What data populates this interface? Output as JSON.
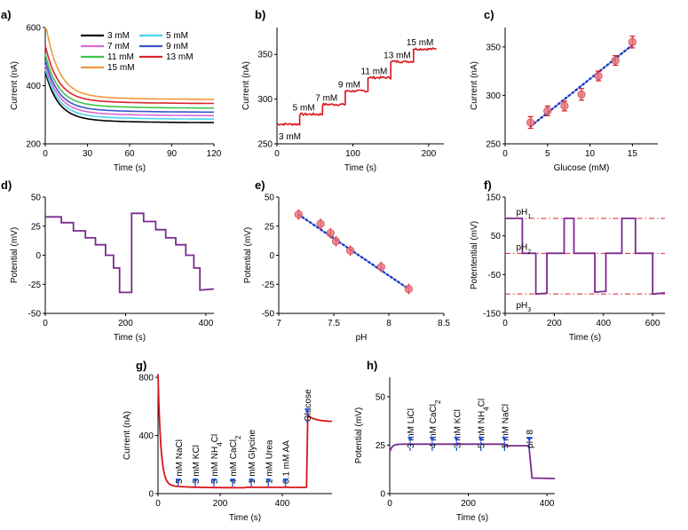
{
  "colors": {
    "purple": "#7b2a8f",
    "red": "#d9141b",
    "blue_dot": "#1f3fc6",
    "arrow_blue": "#2256d9",
    "ref_line": "#d9262e",
    "marker": "#e8707a"
  },
  "chart_data": [
    {
      "id": "a",
      "panel_label": "a)",
      "type": "line",
      "xlabel": "Time (s)",
      "ylabel": "Current (nA)",
      "xlim": [
        0,
        120
      ],
      "ylim": [
        200,
        600
      ],
      "xticks": [
        0,
        30,
        60,
        90,
        120
      ],
      "yticks": [
        200,
        400,
        600
      ],
      "legend": [
        {
          "name": "3 mM",
          "color": "#000000"
        },
        {
          "name": "5 mM",
          "color": "#49d4e6"
        },
        {
          "name": "7 mM",
          "color": "#d86ad8"
        },
        {
          "name": "9 mM",
          "color": "#3a55c8"
        },
        {
          "name": "11 mM",
          "color": "#3ec44a"
        },
        {
          "name": "13 mM",
          "color": "#d9242b"
        },
        {
          "name": "15 mM",
          "color": "#f0993a"
        }
      ],
      "series": [
        {
          "name": "3 mM",
          "plateau": 272,
          "start": 430
        },
        {
          "name": "5 mM",
          "plateau": 284,
          "start": 440
        },
        {
          "name": "7 mM",
          "plateau": 296,
          "start": 455
        },
        {
          "name": "9 mM",
          "plateau": 308,
          "start": 470
        },
        {
          "name": "11 mM",
          "plateau": 322,
          "start": 490
        },
        {
          "name": "13 mM",
          "plateau": 338,
          "start": 520
        },
        {
          "name": "15 mM",
          "plateau": 352,
          "start": 600
        }
      ]
    },
    {
      "id": "b",
      "panel_label": "b)",
      "type": "line",
      "xlabel": "Time (s)",
      "ylabel": "Current (nA)",
      "xlim": [
        0,
        220
      ],
      "ylim": [
        250,
        380
      ],
      "xticks": [
        0,
        100,
        200
      ],
      "yticks": [
        250,
        300,
        350
      ],
      "steps": [
        {
          "x0": 0,
          "x1": 30,
          "y": 272,
          "label": "3 mM"
        },
        {
          "x0": 30,
          "x1": 60,
          "y": 283,
          "label": "5 mM"
        },
        {
          "x0": 60,
          "x1": 90,
          "y": 294,
          "label": "7 mM"
        },
        {
          "x0": 90,
          "x1": 120,
          "y": 309,
          "label": "9 mM"
        },
        {
          "x0": 120,
          "x1": 150,
          "y": 324,
          "label": "11 mM"
        },
        {
          "x0": 150,
          "x1": 180,
          "y": 342,
          "label": "13 mM"
        },
        {
          "x0": 180,
          "x1": 210,
          "y": 356,
          "label": "15 mM"
        }
      ]
    },
    {
      "id": "c",
      "panel_label": "c)",
      "type": "scatter",
      "xlabel": "Glucose (mM)",
      "ylabel": "Current (nA)",
      "xlim": [
        0,
        18
      ],
      "ylim": [
        250,
        370
      ],
      "xticks": [
        0,
        5,
        10,
        15
      ],
      "yticks": [
        250,
        300,
        350
      ],
      "x": [
        3,
        5,
        7,
        9,
        11,
        13,
        15
      ],
      "y": [
        272,
        284,
        289,
        301,
        320,
        336,
        355
      ],
      "yerr": [
        6,
        5,
        5,
        6,
        5,
        5,
        6
      ],
      "fit": {
        "x": [
          3,
          15
        ],
        "y": [
          268,
          352
        ]
      }
    },
    {
      "id": "d",
      "panel_label": "d)",
      "type": "line",
      "xlabel": "Time (s)",
      "ylabel": "Potential (mV)",
      "xlim": [
        0,
        420
      ],
      "ylim": [
        -50,
        50
      ],
      "xticks": [
        0,
        200,
        400
      ],
      "yticks": [
        -50,
        -25,
        0,
        25,
        50
      ],
      "path": [
        [
          0,
          33
        ],
        [
          40,
          33
        ],
        [
          40,
          28
        ],
        [
          70,
          28
        ],
        [
          70,
          21
        ],
        [
          100,
          21
        ],
        [
          100,
          15
        ],
        [
          125,
          15
        ],
        [
          125,
          9
        ],
        [
          150,
          9
        ],
        [
          150,
          0
        ],
        [
          170,
          0
        ],
        [
          170,
          -11
        ],
        [
          185,
          -11
        ],
        [
          185,
          -32
        ],
        [
          215,
          -32
        ],
        [
          215,
          36
        ],
        [
          245,
          36
        ],
        [
          245,
          29
        ],
        [
          275,
          29
        ],
        [
          275,
          22
        ],
        [
          300,
          22
        ],
        [
          300,
          15
        ],
        [
          325,
          15
        ],
        [
          325,
          9
        ],
        [
          350,
          9
        ],
        [
          350,
          0
        ],
        [
          370,
          0
        ],
        [
          370,
          -11
        ],
        [
          385,
          -11
        ],
        [
          385,
          -30
        ],
        [
          420,
          -29
        ]
      ]
    },
    {
      "id": "e",
      "panel_label": "e)",
      "type": "scatter",
      "xlabel": "pH",
      "ylabel": "Potential (mV)",
      "xlim": [
        7,
        8.5
      ],
      "ylim": [
        -50,
        50
      ],
      "xticks": [
        7,
        7.5,
        8,
        8.5
      ],
      "yticks": [
        -50,
        -25,
        0,
        25,
        50
      ],
      "x": [
        7.18,
        7.38,
        7.47,
        7.52,
        7.65,
        7.93,
        8.18
      ],
      "y": [
        35,
        27,
        19,
        12,
        4,
        -10,
        -29
      ],
      "fit": {
        "x": [
          7.18,
          8.18
        ],
        "y": [
          35,
          -29
        ]
      }
    },
    {
      "id": "f",
      "panel_label": "f)",
      "type": "line",
      "xlabel": "Time (s)",
      "ylabel": "Potentential (mV)",
      "xlim": [
        0,
        650
      ],
      "ylim": [
        -150,
        150
      ],
      "xticks": [
        0,
        200,
        400,
        600
      ],
      "yticks": [
        -150,
        -50,
        50,
        150
      ],
      "ref_lines": [
        {
          "y": 95,
          "label": "pH",
          "sub": "1"
        },
        {
          "y": 5,
          "label": "pH",
          "sub": "2"
        },
        {
          "y": -100,
          "label": "pH",
          "sub": "3"
        }
      ],
      "path": [
        [
          0,
          95
        ],
        [
          70,
          95
        ],
        [
          70,
          5
        ],
        [
          125,
          5
        ],
        [
          125,
          -100
        ],
        [
          170,
          -98
        ],
        [
          170,
          5
        ],
        [
          240,
          5
        ],
        [
          240,
          95
        ],
        [
          280,
          95
        ],
        [
          280,
          5
        ],
        [
          365,
          5
        ],
        [
          365,
          -95
        ],
        [
          410,
          -93
        ],
        [
          410,
          5
        ],
        [
          475,
          5
        ],
        [
          475,
          95
        ],
        [
          530,
          95
        ],
        [
          530,
          5
        ],
        [
          600,
          5
        ],
        [
          600,
          -100
        ],
        [
          650,
          -97
        ]
      ]
    },
    {
      "id": "g",
      "panel_label": "g)",
      "type": "line",
      "xlabel": "Time (s)",
      "ylabel": "Current (nA)",
      "xlim": [
        0,
        560
      ],
      "ylim": [
        0,
        800
      ],
      "xticks": [
        0,
        200,
        400
      ],
      "yticks": [
        0,
        400,
        800
      ],
      "annotations": [
        {
          "x": 65,
          "text": "5 mM NaCl"
        },
        {
          "x": 120,
          "text": "3 mM KCl"
        },
        {
          "x": 180,
          "text": "5 mM NH4Cl"
        },
        {
          "x": 240,
          "text": "4 mM CaCl2"
        },
        {
          "x": 300,
          "text": "1 mM Glycine"
        },
        {
          "x": 355,
          "text": "1 mM Urea"
        },
        {
          "x": 410,
          "text": "0.1 mM  AA"
        },
        {
          "x": 480,
          "text": "Glucose"
        }
      ]
    },
    {
      "id": "h",
      "panel_label": "h)",
      "type": "line",
      "xlabel": "Time (s)",
      "ylabel": "Potential (mV)",
      "xlim": [
        0,
        420
      ],
      "ylim": [
        0,
        60
      ],
      "xticks": [
        0,
        200,
        400
      ],
      "yticks": [
        0,
        25,
        50
      ],
      "annotations": [
        {
          "x": 52,
          "text": "3 mM LiCl"
        },
        {
          "x": 108,
          "text": "4 mM CaCl2"
        },
        {
          "x": 170,
          "text": "3 mM KCl"
        },
        {
          "x": 232,
          "text": "5 mM NH4Cl"
        },
        {
          "x": 292,
          "text": "5 mM NaCl"
        },
        {
          "x": 355,
          "text": "pH 8"
        }
      ]
    }
  ]
}
